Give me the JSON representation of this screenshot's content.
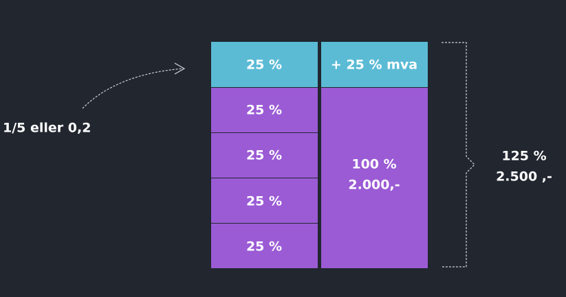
{
  "left_column": {
    "cells": [
      "25 %",
      "25 %",
      "25 %",
      "25 %",
      "25 %"
    ]
  },
  "right_column": {
    "top": "+ 25 % mva",
    "bottom": {
      "lines": [
        "100 %",
        "2.000,-"
      ]
    }
  },
  "total": {
    "lines": [
      "125 %",
      "2.500 ,-"
    ]
  },
  "annotation": "1/5 eller 0,2"
}
